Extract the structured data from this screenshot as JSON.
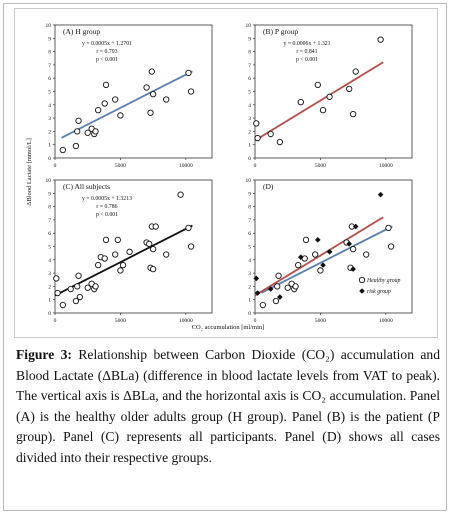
{
  "figure": {
    "y_axis_label": "ΔBlood Lactate [mmol/L]",
    "x_axis_label": "CO₂ accumulation [ml/min]",
    "caption_label": "Figure 3:",
    "caption_text": "Relationship between Carbon Dioxide (CO₂) accumulation and Blood Lactate (ΔBLa) (difference in blood lactate levels from VAT to peak). The vertical axis is ΔBLa, and the horizontal axis is CO₂ accumulation. Panel (A) is the healthy older adults group (H group). Panel (B) is the patient (P group). Panel (C) represents all participants. Panel (D) shows all cases divided into their respective groups."
  },
  "colors": {
    "h_line": "#5b7fae",
    "p_line": "#b3504d",
    "all_line": "#111111",
    "point": "#111111"
  },
  "chart_data": [
    {
      "type": "scatter",
      "panel_label": "(A) H group",
      "equation": "y = 0.0005x + 1.2701",
      "r_text": "r = 0.793",
      "p_text": "p < 0.001",
      "xlim": [
        0,
        12000
      ],
      "ylim": [
        0,
        10
      ],
      "x_ticks": [
        0,
        5000,
        10000
      ],
      "y_ticks": [
        0,
        1,
        2,
        3,
        4,
        5,
        6,
        7,
        8,
        9,
        10
      ],
      "marker": "open-circle",
      "fit": {
        "slope": 0.0005,
        "intercept": 1.2701,
        "x_range": [
          500,
          10500
        ],
        "color_key": "h_line"
      },
      "series": [
        {
          "name": "H group",
          "points": [
            [
              600,
              0.6
            ],
            [
              1600,
              0.9
            ],
            [
              1700,
              2.0
            ],
            [
              1800,
              2.8
            ],
            [
              2500,
              1.9
            ],
            [
              2800,
              2.2
            ],
            [
              3000,
              1.8
            ],
            [
              3100,
              2.0
            ],
            [
              3300,
              3.6
            ],
            [
              3800,
              4.1
            ],
            [
              3900,
              5.5
            ],
            [
              4600,
              4.4
            ],
            [
              5000,
              3.2
            ],
            [
              7000,
              5.3
            ],
            [
              7300,
              3.4
            ],
            [
              7400,
              6.5
            ],
            [
              7500,
              4.8
            ],
            [
              8500,
              4.4
            ],
            [
              10200,
              6.4
            ],
            [
              10400,
              5.0
            ]
          ]
        }
      ]
    },
    {
      "type": "scatter",
      "panel_label": "(B) P group",
      "equation": "y = 0.0006x + 1.321",
      "r_text": "r = 0.841",
      "p_text": "p < 0.001",
      "xlim": [
        0,
        12000
      ],
      "ylim": [
        0,
        10
      ],
      "x_ticks": [
        0,
        5000,
        10000
      ],
      "y_ticks": [
        0,
        1,
        2,
        3,
        4,
        5,
        6,
        7,
        8,
        9,
        10
      ],
      "marker": "open-circle",
      "fit": {
        "slope": 0.0006,
        "intercept": 1.321,
        "x_range": [
          0,
          9800
        ],
        "color_key": "p_line"
      },
      "series": [
        {
          "name": "P group",
          "points": [
            [
              100,
              2.6
            ],
            [
              200,
              1.5
            ],
            [
              1200,
              1.8
            ],
            [
              1900,
              1.2
            ],
            [
              3500,
              4.2
            ],
            [
              4800,
              5.5
            ],
            [
              5200,
              3.6
            ],
            [
              5700,
              4.6
            ],
            [
              7200,
              5.2
            ],
            [
              7700,
              6.5
            ],
            [
              9600,
              8.9
            ],
            [
              7500,
              3.3
            ]
          ]
        }
      ]
    },
    {
      "type": "scatter",
      "panel_label": "(C) All subjects",
      "equation": "y = 0.0005x + 1.3213",
      "r_text": "r = 0.786",
      "p_text": "p < 0.001",
      "xlim": [
        0,
        12000
      ],
      "ylim": [
        0,
        10
      ],
      "x_ticks": [
        0,
        5000,
        10000
      ],
      "y_ticks": [
        0,
        1,
        2,
        3,
        4,
        5,
        6,
        7,
        8,
        9,
        10
      ],
      "marker": "open-circle",
      "fit": {
        "slope": 0.0005,
        "intercept": 1.3213,
        "x_range": [
          0,
          10500
        ],
        "color_key": "all_line"
      },
      "series": [
        {
          "name": "All subjects",
          "points": [
            [
              100,
              2.6
            ],
            [
              200,
              1.5
            ],
            [
              600,
              0.6
            ],
            [
              1200,
              1.8
            ],
            [
              1600,
              0.9
            ],
            [
              1700,
              2.0
            ],
            [
              1800,
              2.8
            ],
            [
              1900,
              1.2
            ],
            [
              2500,
              1.9
            ],
            [
              2800,
              2.2
            ],
            [
              3000,
              1.8
            ],
            [
              3100,
              2.0
            ],
            [
              3300,
              3.6
            ],
            [
              3500,
              4.2
            ],
            [
              3800,
              4.1
            ],
            [
              3900,
              5.5
            ],
            [
              4600,
              4.4
            ],
            [
              4800,
              5.5
            ],
            [
              5000,
              3.2
            ],
            [
              5200,
              3.6
            ],
            [
              5700,
              4.6
            ],
            [
              7000,
              5.3
            ],
            [
              7200,
              5.2
            ],
            [
              7300,
              3.4
            ],
            [
              7400,
              6.5
            ],
            [
              7500,
              4.8
            ],
            [
              7500,
              3.3
            ],
            [
              7700,
              6.5
            ],
            [
              8500,
              4.4
            ],
            [
              9600,
              8.9
            ],
            [
              10200,
              6.4
            ],
            [
              10400,
              5.0
            ]
          ]
        }
      ]
    },
    {
      "type": "scatter",
      "panel_label": "(D)",
      "xlim": [
        0,
        12000
      ],
      "ylim": [
        0,
        10
      ],
      "x_ticks": [
        0,
        5000,
        10000
      ],
      "y_ticks": [
        0,
        1,
        2,
        3,
        4,
        5,
        6,
        7,
        8,
        9,
        10
      ],
      "legend_position": "bottom-right",
      "fits": [
        {
          "slope": 0.0005,
          "intercept": 1.2701,
          "x_range": [
            500,
            10500
          ],
          "color_key": "h_line"
        },
        {
          "slope": 0.0006,
          "intercept": 1.321,
          "x_range": [
            0,
            9800
          ],
          "color_key": "p_line"
        }
      ],
      "series": [
        {
          "name": "Healthy group",
          "marker": "open-circle",
          "points": [
            [
              600,
              0.6
            ],
            [
              1600,
              0.9
            ],
            [
              1700,
              2.0
            ],
            [
              1800,
              2.8
            ],
            [
              2500,
              1.9
            ],
            [
              2800,
              2.2
            ],
            [
              3000,
              1.8
            ],
            [
              3100,
              2.0
            ],
            [
              3300,
              3.6
            ],
            [
              3800,
              4.1
            ],
            [
              3900,
              5.5
            ],
            [
              4600,
              4.4
            ],
            [
              5000,
              3.2
            ],
            [
              7000,
              5.3
            ],
            [
              7300,
              3.4
            ],
            [
              7400,
              6.5
            ],
            [
              7500,
              4.8
            ],
            [
              8500,
              4.4
            ],
            [
              10200,
              6.4
            ],
            [
              10400,
              5.0
            ]
          ]
        },
        {
          "name": "risk group",
          "marker": "filled-diamond",
          "points": [
            [
              100,
              2.6
            ],
            [
              200,
              1.5
            ],
            [
              1200,
              1.8
            ],
            [
              1900,
              1.2
            ],
            [
              3500,
              4.2
            ],
            [
              4800,
              5.5
            ],
            [
              5200,
              3.6
            ],
            [
              5700,
              4.6
            ],
            [
              7200,
              5.2
            ],
            [
              7700,
              6.5
            ],
            [
              9600,
              8.9
            ],
            [
              7500,
              3.3
            ]
          ]
        }
      ]
    }
  ]
}
